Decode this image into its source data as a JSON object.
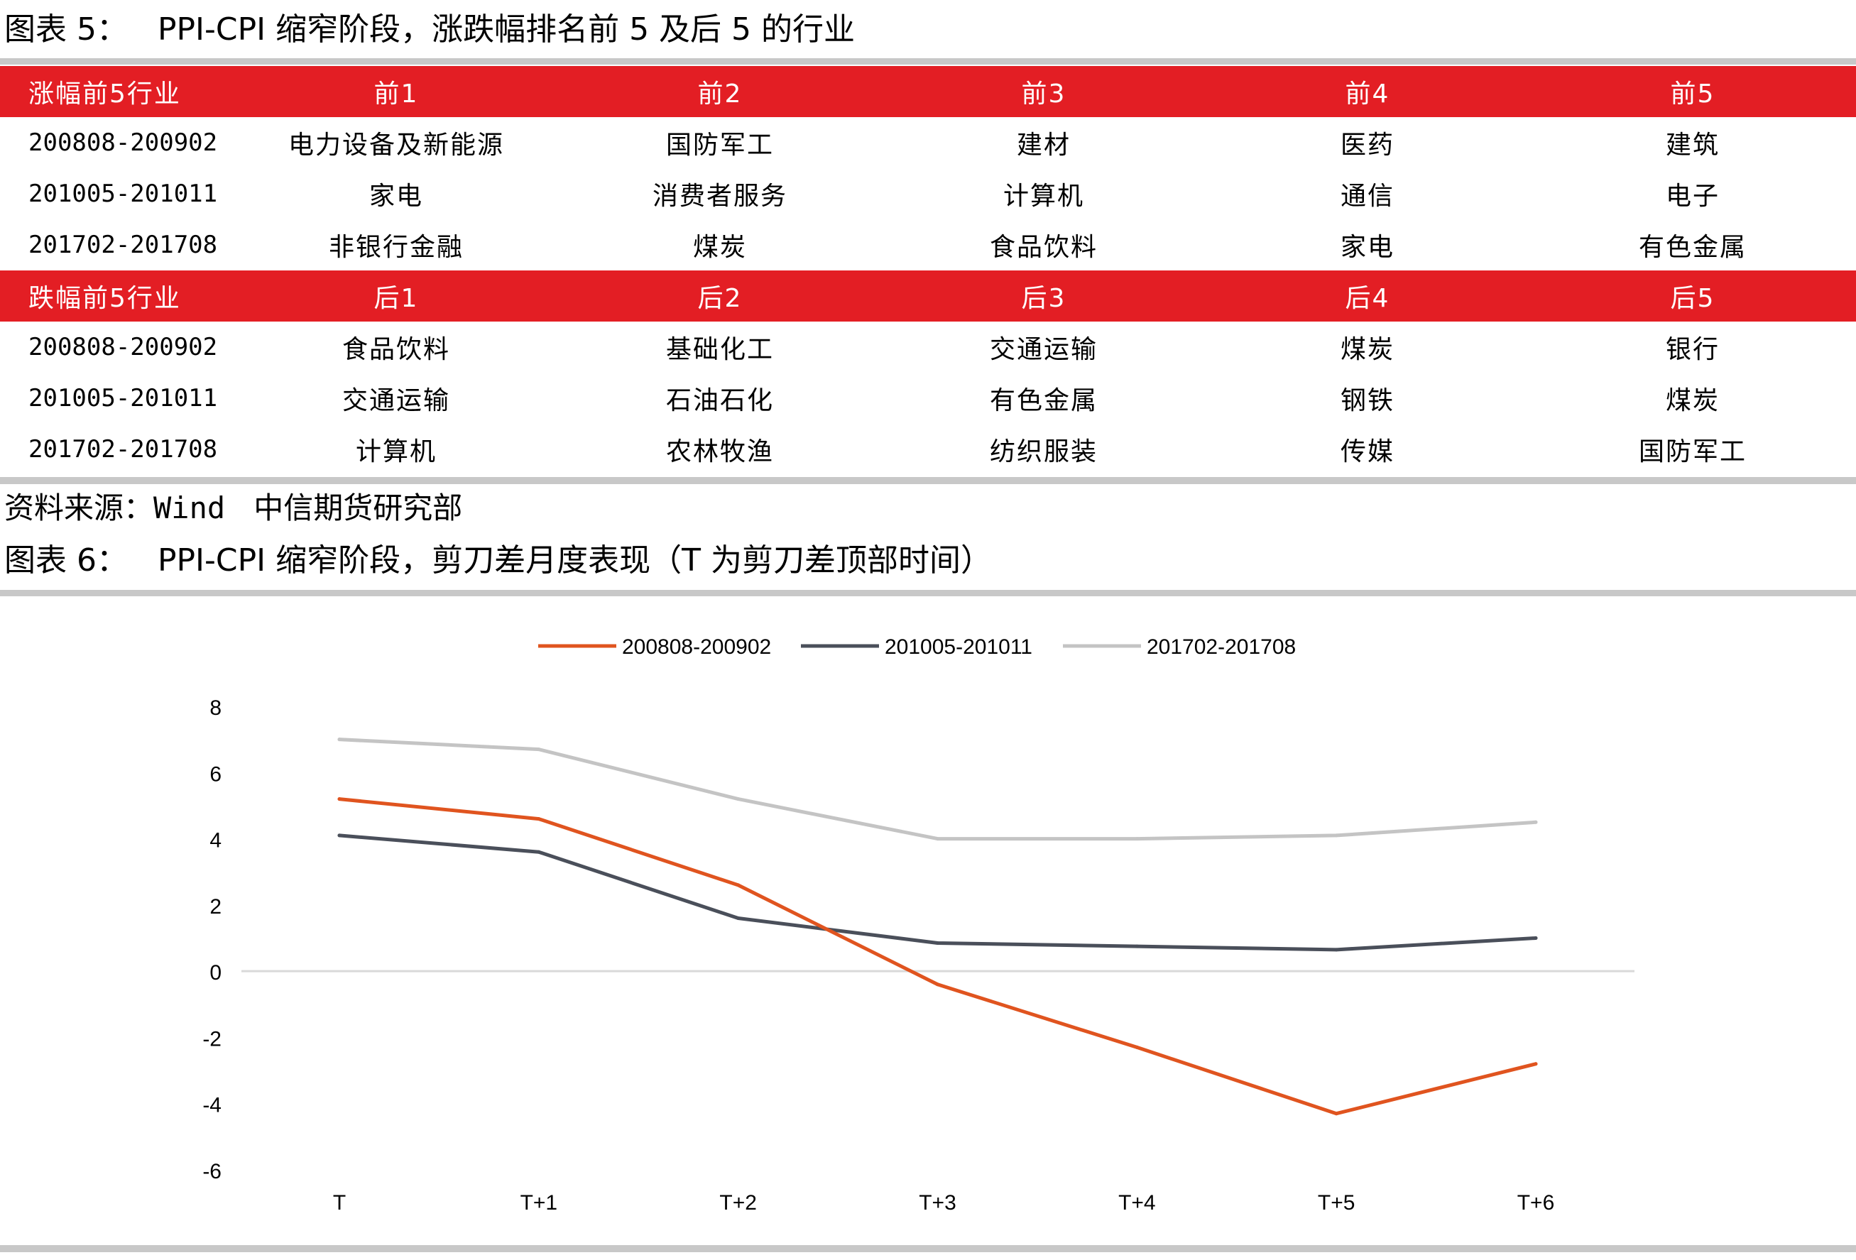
{
  "figure5": {
    "title": "图表 5：   PPI-CPI 缩窄阶段，涨跌幅排名前 5 及后 5 的行业",
    "top_header": [
      "涨幅前5行业",
      "前1",
      "前2",
      "前3",
      "前4",
      "前5"
    ],
    "top_rows": [
      [
        "200808-200902",
        "电力设备及新能源",
        "国防军工",
        "建材",
        "医药",
        "建筑"
      ],
      [
        "201005-201011",
        "家电",
        "消费者服务",
        "计算机",
        "通信",
        "电子"
      ],
      [
        "201702-201708",
        "非银行金融",
        "煤炭",
        "食品饮料",
        "家电",
        "有色金属"
      ]
    ],
    "bottom_header": [
      "跌幅前5行业",
      "后1",
      "后2",
      "后3",
      "后4",
      "后5"
    ],
    "bottom_rows": [
      [
        "200808-200902",
        "食品饮料",
        "基础化工",
        "交通运输",
        "煤炭",
        "银行"
      ],
      [
        "201005-201011",
        "交通运输",
        "石油石化",
        "有色金属",
        "钢铁",
        "煤炭"
      ],
      [
        "201702-201708",
        "计算机",
        "农林牧渔",
        "纺织服装",
        "传媒",
        "国防军工"
      ]
    ],
    "source_prefix": "资料来源：",
    "source_name": "Wind",
    "source_org": "中信期货研究部"
  },
  "figure6": {
    "title": "图表 6：   PPI-CPI 缩窄阶段，剪刀差月度表现（T 为剪刀差顶部时间）"
  },
  "colors": {
    "accent_red": "#e31e24",
    "rule_gray": "#c8c8c8"
  },
  "chart_data": {
    "type": "line",
    "categories": [
      "T",
      "T+1",
      "T+2",
      "T+3",
      "T+4",
      "T+5",
      "T+6"
    ],
    "ylim": [
      -6,
      8
    ],
    "yticks": [
      "8",
      "6",
      "4",
      "2",
      "0",
      "-2",
      "-4",
      "-6"
    ],
    "legend_position": "top-center",
    "grid": false,
    "series": [
      {
        "name": "200808-200902",
        "color": "#e0541f",
        "values": [
          5.2,
          4.6,
          2.6,
          -0.4,
          -2.3,
          -4.3,
          -2.8
        ]
      },
      {
        "name": "201005-201011",
        "color": "#4a4f5a",
        "values": [
          4.1,
          3.6,
          1.6,
          0.85,
          0.75,
          0.65,
          1.0
        ]
      },
      {
        "name": "201702-201708",
        "color": "#c4c4c4",
        "values": [
          7.0,
          6.7,
          5.2,
          4.0,
          4.0,
          4.1,
          4.5
        ]
      }
    ]
  }
}
